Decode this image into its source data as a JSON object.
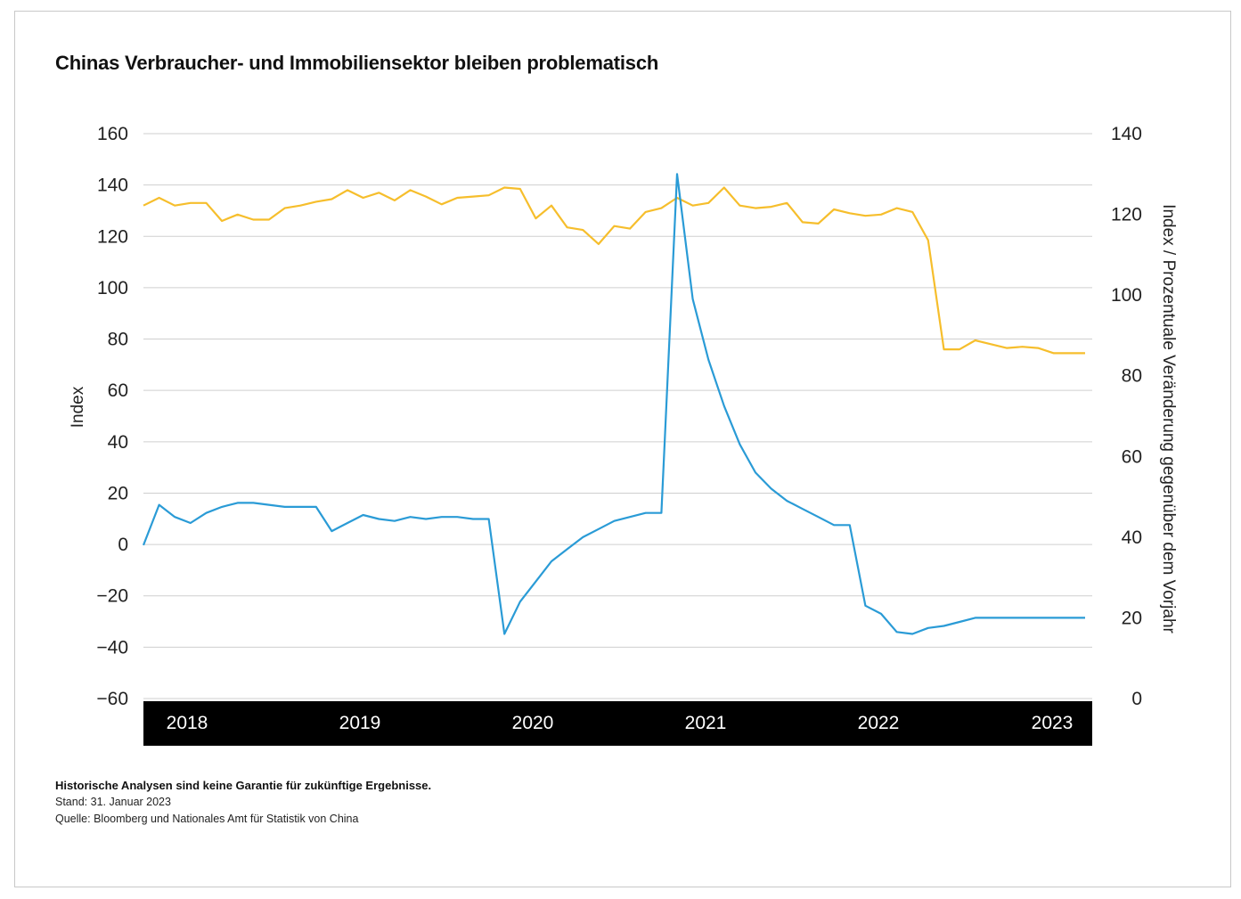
{
  "title": "Chinas Verbraucher- und Immobiliensektor bleiben problematisch",
  "footer": {
    "disclaimer": "Historische Analysen sind keine Garantie für zukünftige Ergebnisse.",
    "date": "Stand: 31. Januar 2023",
    "source": "Quelle: Bloomberg und Nationales Amt für Statistik von China"
  },
  "colors": {
    "yellow_series": "#F6BE2C",
    "blue_series": "#2A9BD6",
    "grid": "#cfcfcf",
    "year_band": "#000000"
  },
  "chart_data": {
    "type": "line",
    "ylabel_left": "Index",
    "ylabel_right": "Index / Prozentuale Veränderung gegenüber dem Vorjahr",
    "ylim_left": [
      -60,
      160
    ],
    "ylim_right": [
      0,
      140
    ],
    "yticks_left": [
      "160",
      "140",
      "120",
      "100",
      "80",
      "60",
      "40",
      "20",
      "0",
      "−20",
      "−40",
      "−60"
    ],
    "yticks_right": [
      "140",
      "120",
      "100",
      "80",
      "60",
      "40",
      "20",
      "0"
    ],
    "years": [
      "2018",
      "2019",
      "2020",
      "2021",
      "2022",
      "2023"
    ],
    "x_start": "2018-01",
    "x": [
      "2018-01",
      "2018-02",
      "2018-03",
      "2018-04",
      "2018-05",
      "2018-06",
      "2018-07",
      "2018-08",
      "2018-09",
      "2018-10",
      "2018-11",
      "2018-12",
      "2019-01",
      "2019-02",
      "2019-03",
      "2019-04",
      "2019-05",
      "2019-06",
      "2019-07",
      "2019-08",
      "2019-09",
      "2019-10",
      "2019-11",
      "2019-12",
      "2020-01",
      "2020-02",
      "2020-03",
      "2020-04",
      "2020-05",
      "2020-06",
      "2020-07",
      "2020-08",
      "2020-09",
      "2020-10",
      "2020-11",
      "2020-12",
      "2021-01",
      "2021-02",
      "2021-03",
      "2021-04",
      "2021-05",
      "2021-06",
      "2021-07",
      "2021-08",
      "2021-09",
      "2021-10",
      "2021-11",
      "2021-12",
      "2022-01",
      "2022-02",
      "2022-03",
      "2022-04",
      "2022-05",
      "2022-06",
      "2022-07",
      "2022-08",
      "2022-09",
      "2022-10",
      "2022-11",
      "2022-12",
      "2023-01"
    ],
    "series": [
      {
        "axis": "left",
        "values": [
          132,
          135,
          132,
          133,
          133,
          126,
          128.5,
          126.5,
          126.5,
          131,
          132,
          133.5,
          134.5,
          138,
          135,
          137,
          134,
          138,
          135.5,
          132.5,
          135,
          135.5,
          136,
          139,
          138.5,
          127,
          132,
          123.5,
          122.5,
          117,
          124,
          123,
          129.5,
          131,
          135,
          132,
          133,
          139,
          132,
          131,
          131.5,
          133,
          125.5,
          125,
          130.5,
          129,
          128,
          128.5,
          131,
          129.5,
          118.5,
          76,
          76,
          79.5,
          78,
          76.5,
          77,
          76.5,
          74.5,
          74.5,
          74.5
        ]
      },
      {
        "axis": "right",
        "values": [
          38,
          48,
          45,
          43.5,
          46,
          47.5,
          48.5,
          48.5,
          48,
          47.5,
          47.5,
          47.5,
          41.5,
          43.5,
          45.5,
          44.5,
          44,
          45,
          44.5,
          45,
          45,
          44.5,
          44.5,
          16,
          24,
          29,
          34,
          37,
          40,
          42,
          44,
          45,
          46,
          46,
          130,
          99,
          84,
          72.5,
          63,
          56,
          52,
          49,
          47,
          45,
          43,
          43,
          23,
          21,
          16.5,
          16,
          17.5,
          18,
          19,
          20,
          20,
          20,
          20,
          20,
          20,
          20,
          20
        ]
      }
    ]
  }
}
